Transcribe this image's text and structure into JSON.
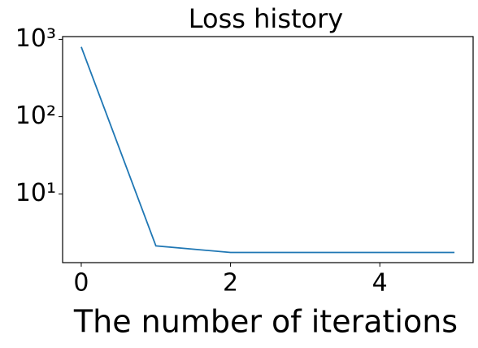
{
  "chart_data": {
    "type": "line",
    "title": "Loss history",
    "x_label": "The number of iterations",
    "x": [
      0,
      1,
      2,
      3,
      4,
      5
    ],
    "series": [
      {
        "name": "loss",
        "color": "#1f77b4",
        "values": [
          800,
          2.14,
          1.76,
          1.76,
          1.76,
          1.76
        ]
      }
    ],
    "xlim": [
      -0.25,
      5.25
    ],
    "xticks": [
      0,
      2,
      4
    ],
    "ylim": [
      1.3,
      1086
    ],
    "y_scale": "log",
    "yticks": [
      {
        "value": 10,
        "label": "10¹"
      },
      {
        "value": 100,
        "label": "10²"
      },
      {
        "value": 1000,
        "label": "10³"
      }
    ],
    "grid": false,
    "legend": false
  }
}
